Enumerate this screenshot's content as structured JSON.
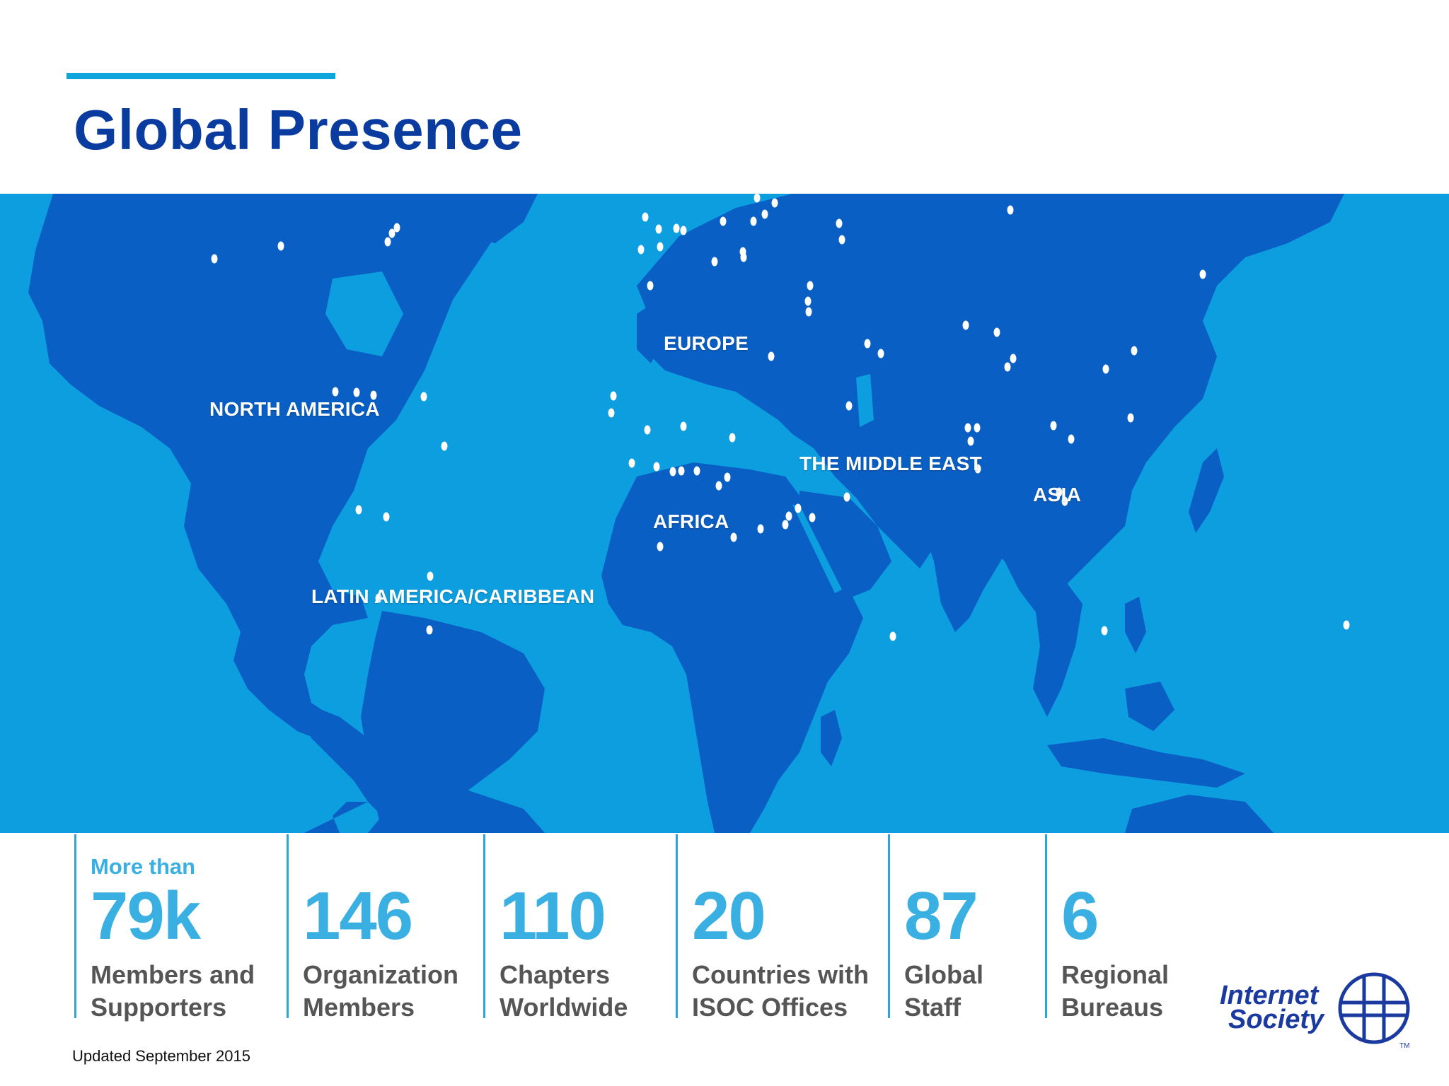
{
  "header": {
    "title": "Global Presence"
  },
  "map": {
    "regions": [
      {
        "id": "north-america",
        "label": "NORTH AMERICA"
      },
      {
        "id": "europe",
        "label": "EUROPE"
      },
      {
        "id": "middle-east",
        "label": "THE MIDDLE EAST"
      },
      {
        "id": "asia",
        "label": "ASIA"
      },
      {
        "id": "africa",
        "label": "AFRICA"
      },
      {
        "id": "latin-america",
        "label": "LATIN AMERICA/CARIBBEAN"
      }
    ],
    "colors": {
      "ocean": "#0d9ee0",
      "land": "#0a5fc4",
      "dot": "#ffffff"
    }
  },
  "stats": [
    {
      "prefix": "More than",
      "value": "79k",
      "label_line1": "Members and",
      "label_line2": "Supporters"
    },
    {
      "prefix": "",
      "value": "146",
      "label_line1": "Organization",
      "label_line2": "Members"
    },
    {
      "prefix": "",
      "value": "110",
      "label_line1": "Chapters",
      "label_line2": "Worldwide"
    },
    {
      "prefix": "",
      "value": "20",
      "label_line1": "Countries with",
      "label_line2": "ISOC Offices"
    },
    {
      "prefix": "",
      "value": "87",
      "label_line1": "Global",
      "label_line2": "Staff"
    },
    {
      "prefix": "",
      "value": "6",
      "label_line1": "Regional",
      "label_line2": "Bureaus"
    }
  ],
  "footer": {
    "updated": "Updated September 2015"
  },
  "logo": {
    "line1": "Internet",
    "line2": "Society",
    "tm": "TM"
  },
  "colors": {
    "title": "#0a3b9e",
    "accent": "#0ea5dc",
    "stat_value": "#3ab0e2",
    "stat_label": "#555555"
  }
}
